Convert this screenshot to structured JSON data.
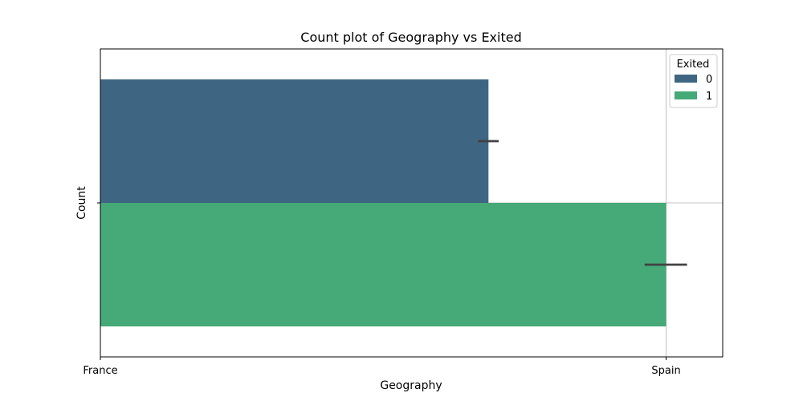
{
  "chart_data": {
    "type": "bar",
    "orientation": "horizontal",
    "title": "Count plot of Geography vs Exited",
    "xlabel": "Geography",
    "ylabel": "Count",
    "x_ticks": [
      "France",
      "Spain"
    ],
    "xlim": [
      0,
      1.1
    ],
    "x_tick_positions": [
      0,
      1
    ],
    "grid": true,
    "legend": {
      "title": "Exited",
      "placement": "top-right"
    },
    "series": [
      {
        "name": "0",
        "value": 0.686,
        "error": [
          0.667,
          0.704
        ],
        "color": "#3e6683"
      },
      {
        "name": "1",
        "value": 1.0,
        "error": [
          0.962,
          1.037
        ],
        "color": "#45a978"
      }
    ]
  }
}
